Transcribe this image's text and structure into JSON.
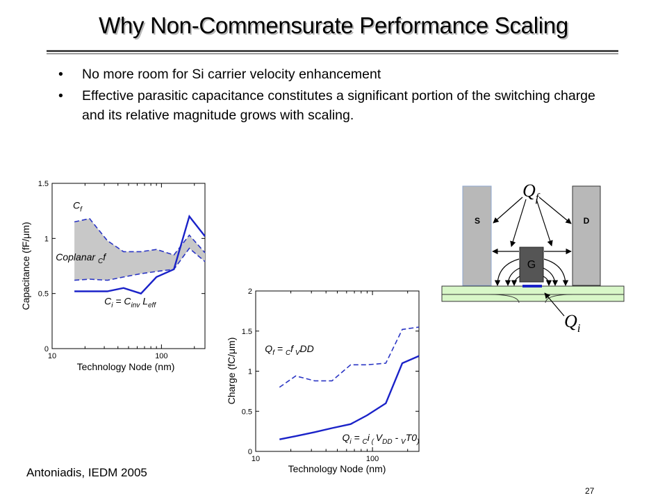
{
  "slide": {
    "title": "Why Non-Commensurate   Performance Scaling",
    "bullets": [
      "No more room for Si carrier velocity enhancement",
      "Effective parasitic capacitance constitutes a significant portion of the switching charge and its relative magnitude grows with scaling."
    ],
    "citation": "Antoniadis, IEDM 2005",
    "page_number": "27"
  },
  "chart_data": [
    {
      "type": "line",
      "xscale": "log",
      "xlim": [
        10,
        250
      ],
      "ylim": [
        0,
        1.5
      ],
      "xlabel": "Technology Node (nm)",
      "ylabel": "Capacitance  (fF/μm)",
      "x_ticks": [
        "10",
        "100"
      ],
      "y_ticks": [
        "0",
        "0.5",
        "1",
        "1.5"
      ],
      "series": [
        {
          "name": "Cf",
          "style": "dashed",
          "color": "#2a35c4",
          "x": [
            16,
            22,
            32,
            45,
            65,
            90,
            130,
            180,
            250
          ],
          "y": [
            1.15,
            1.18,
            0.98,
            0.88,
            0.88,
            0.9,
            0.85,
            1.03,
            0.87
          ]
        },
        {
          "name": "Coplanar Cf",
          "style": "dashed",
          "color": "#2a35c4",
          "x": [
            16,
            22,
            32,
            45,
            65,
            90,
            130,
            180,
            250
          ],
          "y": [
            0.62,
            0.63,
            0.62,
            0.65,
            0.68,
            0.7,
            0.72,
            0.91,
            0.79
          ]
        },
        {
          "name": "Ci = Cinv Leff",
          "style": "solid",
          "color": "#1a22c8",
          "x": [
            16,
            22,
            32,
            45,
            65,
            90,
            130,
            180,
            250
          ],
          "y": [
            0.52,
            0.52,
            0.52,
            0.55,
            0.5,
            0.65,
            0.72,
            1.2,
            1.02
          ]
        }
      ],
      "band": {
        "between": [
          "Cf",
          "Coplanar Cf"
        ],
        "color": "#c8c8c8"
      },
      "annotations": [
        {
          "parts": [
            "C",
            "f"
          ],
          "at": [
            15.5,
            1.27
          ]
        },
        {
          "parts": [
            "Coplanar ",
            "C",
            "f"
          ],
          "at": [
            10.8,
            0.8
          ]
        },
        {
          "parts": [
            "C",
            "i",
            "  =   C",
            "inv",
            "  L",
            "eff"
          ],
          "at": [
            30,
            0.4
          ]
        }
      ]
    },
    {
      "type": "line",
      "xscale": "log",
      "xlim": [
        10,
        250
      ],
      "ylim": [
        0,
        2
      ],
      "xlabel": "Technology Node (nm)",
      "ylabel": "Charge  (fC/μm)",
      "x_ticks": [
        "10",
        "100"
      ],
      "y_ticks": [
        "0",
        "0.5",
        "1",
        "1.5",
        "2"
      ],
      "series": [
        {
          "name": "Qf = Cf VDD",
          "style": "dashed",
          "color": "#2a35c4",
          "x": [
            16,
            22,
            32,
            45,
            65,
            90,
            130,
            180,
            250
          ],
          "y": [
            0.8,
            0.94,
            0.88,
            0.88,
            1.08,
            1.08,
            1.1,
            1.52,
            1.55
          ]
        },
        {
          "name": "Qi = Ci (VDD - VT0)",
          "style": "solid",
          "color": "#1a22c8",
          "x": [
            16,
            22,
            32,
            45,
            65,
            90,
            130,
            180,
            250
          ],
          "y": [
            0.15,
            0.19,
            0.24,
            0.29,
            0.34,
            0.45,
            0.6,
            1.1,
            1.19
          ]
        }
      ],
      "annotations": [
        {
          "parts": [
            "Q",
            "f",
            "  =  ",
            "C",
            "f",
            " V",
            "DD"
          ],
          "at": [
            12,
            1.24
          ]
        },
        {
          "parts": [
            "Q",
            "i",
            "  =  ",
            "C",
            "i",
            " ( ",
            "V",
            "DD",
            "  -   ",
            "V",
            "T0",
            ")"
          ],
          "at": [
            55,
            0.13
          ]
        }
      ]
    }
  ],
  "device_diagram": {
    "source_label": "S",
    "drain_label": "D",
    "gate_label": "G",
    "fringe_charge": [
      "Q",
      "f"
    ],
    "inversion_charge": [
      "Q",
      "i"
    ]
  },
  "colors": {
    "plot_line": "#1a22c8",
    "band": "#c8c8c8",
    "substrate": "#d8f7c8",
    "electrode": "#b8b8b8",
    "gate": "#555555"
  }
}
